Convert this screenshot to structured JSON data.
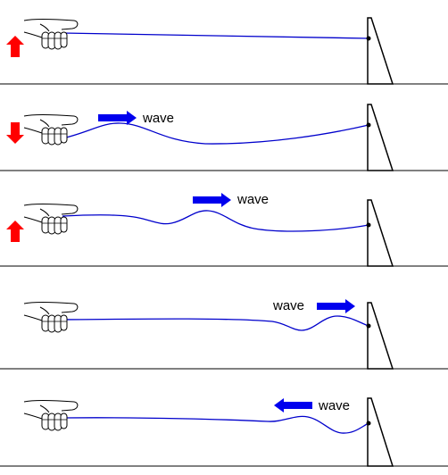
{
  "wave_label": "wave",
  "colors": {
    "rope": "#0000cc",
    "wave_arrow": "#0000ee",
    "hand_motion_arrow": "#ff0000",
    "outline": "#000000",
    "background": "#ffffff"
  },
  "panels": [
    {
      "id": "panel-1",
      "hand_motion": "up",
      "wave_arrow": "none",
      "rope_shape": "straight"
    },
    {
      "id": "panel-2",
      "hand_motion": "down",
      "wave_arrow": "right",
      "rope_shape": "wave-leaving-hand"
    },
    {
      "id": "panel-3",
      "hand_motion": "up",
      "wave_arrow": "right",
      "rope_shape": "wave-middle"
    },
    {
      "id": "panel-4",
      "hand_motion": "none",
      "wave_arrow": "right",
      "rope_shape": "wave-reaching-post"
    },
    {
      "id": "panel-5",
      "hand_motion": "none",
      "wave_arrow": "left",
      "rope_shape": "wave-reflected"
    }
  ]
}
